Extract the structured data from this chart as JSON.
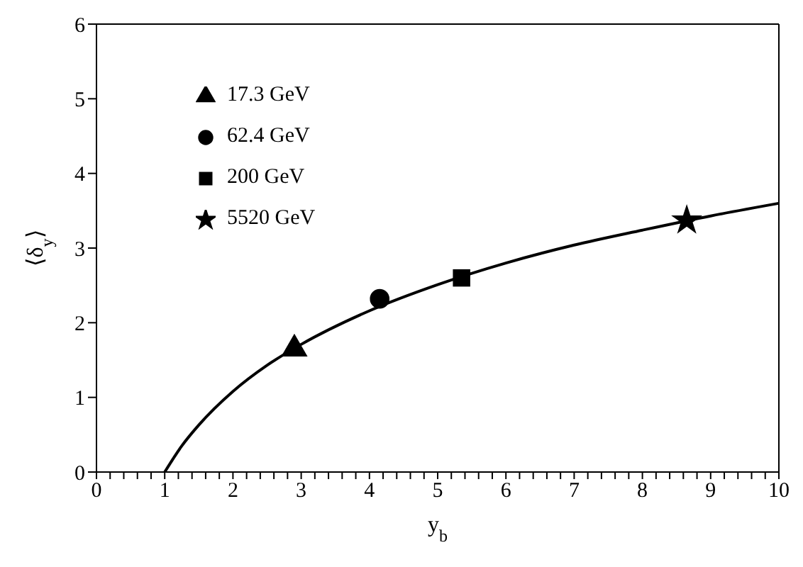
{
  "chart_data": {
    "type": "scatter",
    "xlabel": "y$_{b}$",
    "ylabel": "⟨δ$_{y}$⟩",
    "xlim": [
      0,
      10
    ],
    "ylim": [
      0,
      6
    ],
    "xticks": [
      0,
      {
        "value": 0.2,
        "label": null
      },
      {
        "value": 0.4,
        "label": null
      },
      {
        "value": 0.6,
        "label": null
      },
      {
        "value": 0.8,
        "label": null
      },
      1,
      {
        "value": 1.2,
        "label": null
      },
      {
        "value": 1.4,
        "label": null
      },
      {
        "value": 1.6,
        "label": null
      },
      {
        "value": 1.8,
        "label": null
      },
      2,
      {
        "value": 2.2,
        "label": null
      },
      {
        "value": 2.4,
        "label": null
      },
      {
        "value": 2.6,
        "label": null
      },
      {
        "value": 2.8,
        "label": null
      },
      3,
      {
        "value": 3.2,
        "label": null
      },
      {
        "value": 3.4,
        "label": null
      },
      {
        "value": 3.6,
        "label": null
      },
      {
        "value": 3.8,
        "label": null
      },
      4,
      {
        "value": 4.2,
        "label": null
      },
      {
        "value": 4.4,
        "label": null
      },
      {
        "value": 4.6,
        "label": null
      },
      {
        "value": 4.8,
        "label": null
      },
      5,
      {
        "value": 5.2,
        "label": null
      },
      {
        "value": 5.4,
        "label": null
      },
      {
        "value": 5.6,
        "label": null
      },
      {
        "value": 5.8,
        "label": null
      },
      6,
      {
        "value": 6.2,
        "label": null
      },
      {
        "value": 6.4,
        "label": null
      },
      {
        "value": 6.6,
        "label": null
      },
      {
        "value": 6.8,
        "label": null
      },
      7,
      {
        "value": 7.2,
        "label": null
      },
      {
        "value": 7.4,
        "label": null
      },
      {
        "value": 7.6,
        "label": null
      },
      {
        "value": 7.8,
        "label": null
      },
      8,
      {
        "value": 8.2,
        "label": null
      },
      {
        "value": 8.4,
        "label": null
      },
      {
        "value": 8.6,
        "label": null
      },
      {
        "value": 8.8,
        "label": null
      },
      9,
      {
        "value": 9.2,
        "label": null
      },
      {
        "value": 9.4,
        "label": null
      },
      {
        "value": 9.6,
        "label": null
      },
      {
        "value": 9.8,
        "label": null
      },
      10
    ],
    "yticks": [
      0,
      1,
      2,
      3,
      4,
      5,
      6
    ],
    "legend": "top left",
    "series": [
      {
        "type": "line",
        "color": "#000000",
        "marker": "none",
        "line_style": "solid",
        "x": [
          1,
          1.25,
          1.5,
          2,
          2.5,
          3,
          4,
          5,
          6,
          7,
          8,
          9,
          10
        ],
        "values": [
          0,
          0.35,
          0.63,
          1.08,
          1.43,
          1.71,
          2.16,
          2.51,
          2.8,
          3.04,
          3.24,
          3.43,
          3.6
        ]
      },
      {
        "name": "17.3 GeV",
        "color": "#000000",
        "marker": "triangle",
        "x": [
          2.9
        ],
        "values": [
          1.65
        ]
      },
      {
        "name": "62.4 GeV",
        "color": "#000000",
        "marker": "circle",
        "x": [
          4.15
        ],
        "values": [
          2.32
        ]
      },
      {
        "name": "200 GeV",
        "color": "#000000",
        "marker": "square",
        "x": [
          5.35
        ],
        "values": [
          2.6
        ]
      },
      {
        "name": "5520 GeV",
        "color": "#000000",
        "marker": "star",
        "x": [
          8.65
        ],
        "values": [
          3.37
        ]
      }
    ]
  }
}
